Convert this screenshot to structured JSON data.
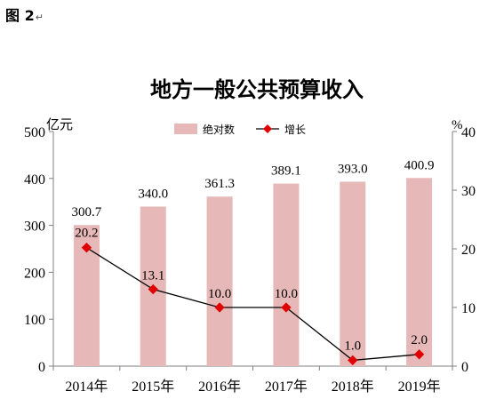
{
  "figure_label": "图 2",
  "figure_label_mark": "↵",
  "chart_data": {
    "type": "bar",
    "title": "地方一般公共预算收入",
    "categories": [
      "2014年",
      "2015年",
      "2016年",
      "2017年",
      "2018年",
      "2019年"
    ],
    "series": [
      {
        "name": "绝对数",
        "type": "bar",
        "axis": "left",
        "color": "#e6b8b7",
        "values": [
          300.7,
          340.0,
          361.3,
          389.1,
          393.0,
          400.9
        ],
        "labels": [
          "300.7",
          "340.0",
          "361.3",
          "389.1",
          "393.0",
          "400.9"
        ]
      },
      {
        "name": "增长",
        "type": "line",
        "axis": "right",
        "color": "#e00000",
        "line_color": "#000000",
        "values": [
          20.2,
          13.1,
          10.0,
          10.0,
          1.0,
          2.0
        ],
        "labels": [
          "20.2",
          "13.1",
          "10.0",
          "10.0",
          "1.0",
          "2.0"
        ]
      }
    ],
    "left_axis": {
      "unit_label": "亿元",
      "range": [
        0,
        500
      ],
      "ticks": [
        "0",
        "100",
        "200",
        "300",
        "400",
        "500"
      ]
    },
    "right_axis": {
      "unit_label": "%",
      "range": [
        0,
        40
      ],
      "ticks": [
        "0",
        "10",
        "20",
        "30",
        "40"
      ]
    },
    "legend_position": "top-center",
    "grid": false
  }
}
